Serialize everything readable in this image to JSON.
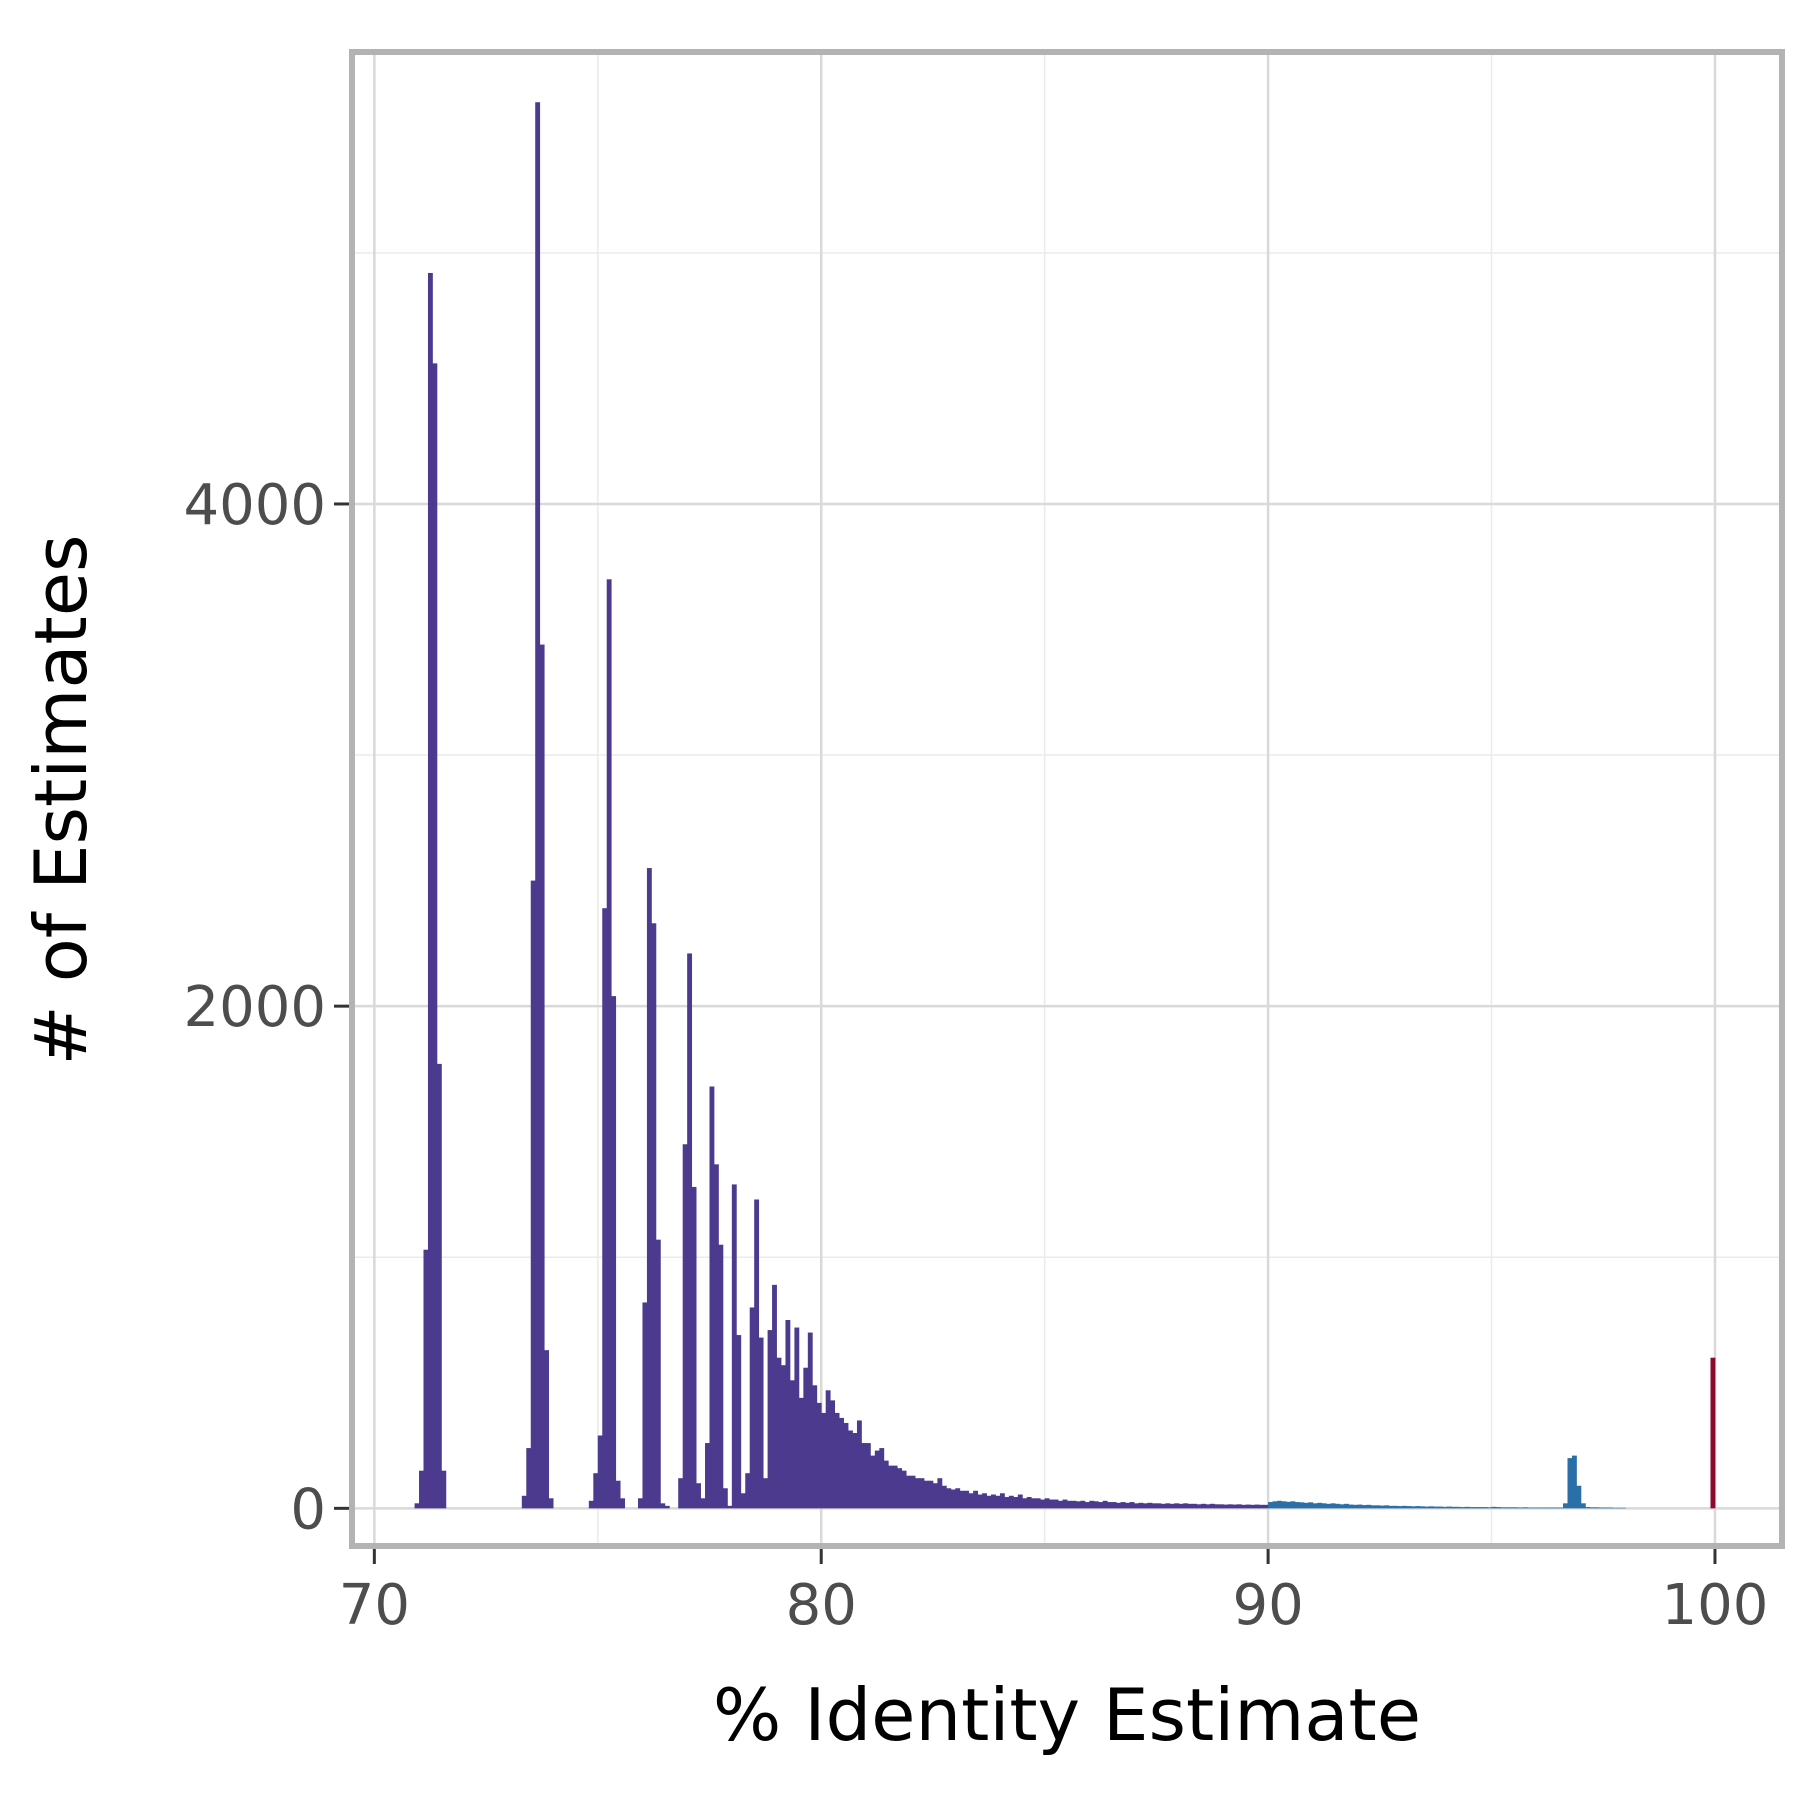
{
  "chart_data": {
    "type": "bar",
    "title": "",
    "xlabel": "% Identity Estimate",
    "ylabel": "# of Estimates",
    "xlim": [
      69.5,
      101.5
    ],
    "ylim": [
      -150,
      5800
    ],
    "x_ticks": [
      70,
      80,
      90,
      100
    ],
    "x_tick_labels": [
      "70",
      "80",
      "90",
      "100"
    ],
    "y_ticks": [
      0,
      2000,
      4000
    ],
    "y_tick_labels": [
      "0",
      "2000",
      "4000"
    ],
    "x_minor_ticks": [
      75,
      85,
      95
    ],
    "y_minor_ticks": [
      1000,
      3000,
      5000
    ],
    "grid": true,
    "bin_width": 0.1,
    "colors": {
      "purple": "#4b3a8e",
      "blue": "#2a6fa8",
      "red": "#8b0a2e",
      "grid": "#d9d9d9",
      "frame": "#b3b3b3"
    },
    "series": [
      {
        "color": "#4b3a8e",
        "bins": [
          [
            70.9,
            20
          ],
          [
            71.0,
            150
          ],
          [
            71.1,
            1030
          ],
          [
            71.2,
            4920
          ],
          [
            71.3,
            4560
          ],
          [
            71.4,
            1770
          ],
          [
            71.5,
            150
          ],
          [
            73.3,
            50
          ],
          [
            73.4,
            240
          ],
          [
            73.5,
            2500
          ],
          [
            73.6,
            5600
          ],
          [
            73.7,
            3440
          ],
          [
            73.8,
            630
          ],
          [
            73.9,
            40
          ],
          [
            74.8,
            30
          ],
          [
            74.9,
            140
          ],
          [
            75.0,
            290
          ],
          [
            75.1,
            2390
          ],
          [
            75.2,
            3700
          ],
          [
            75.3,
            2040
          ],
          [
            75.4,
            110
          ],
          [
            75.5,
            40
          ],
          [
            75.9,
            40
          ],
          [
            76.0,
            820
          ],
          [
            76.1,
            2550
          ],
          [
            76.2,
            2330
          ],
          [
            76.3,
            1070
          ],
          [
            76.4,
            20
          ],
          [
            76.5,
            10
          ],
          [
            76.8,
            120
          ],
          [
            76.9,
            1450
          ],
          [
            77.0,
            2210
          ],
          [
            77.1,
            1280
          ],
          [
            77.2,
            100
          ],
          [
            77.3,
            40
          ],
          [
            77.4,
            260
          ],
          [
            77.5,
            1680
          ],
          [
            77.6,
            1370
          ],
          [
            77.7,
            1050
          ],
          [
            77.8,
            80
          ],
          [
            77.9,
            10
          ],
          [
            78.0,
            1290
          ],
          [
            78.1,
            690
          ],
          [
            78.2,
            60
          ],
          [
            78.3,
            140
          ],
          [
            78.4,
            800
          ],
          [
            78.5,
            1230
          ],
          [
            78.6,
            680
          ],
          [
            78.7,
            120
          ],
          [
            78.8,
            710
          ],
          [
            78.9,
            890
          ],
          [
            79.0,
            600
          ],
          [
            79.1,
            570
          ],
          [
            79.2,
            750
          ],
          [
            79.3,
            510
          ],
          [
            79.4,
            720
          ],
          [
            79.5,
            440
          ],
          [
            79.6,
            560
          ],
          [
            79.7,
            700
          ],
          [
            79.8,
            490
          ],
          [
            79.9,
            420
          ],
          [
            80.0,
            380
          ],
          [
            80.1,
            470
          ],
          [
            80.2,
            430
          ],
          [
            80.3,
            380
          ],
          [
            80.4,
            360
          ],
          [
            80.5,
            340
          ],
          [
            80.6,
            310
          ],
          [
            80.7,
            300
          ],
          [
            80.8,
            350
          ],
          [
            80.9,
            260
          ],
          [
            81.0,
            260
          ],
          [
            81.1,
            210
          ],
          [
            81.2,
            230
          ],
          [
            81.3,
            240
          ],
          [
            81.4,
            190
          ],
          [
            81.5,
            170
          ],
          [
            81.6,
            170
          ],
          [
            81.7,
            160
          ],
          [
            81.8,
            150
          ],
          [
            81.9,
            130
          ],
          [
            82.0,
            130
          ],
          [
            82.1,
            120
          ],
          [
            82.2,
            120
          ],
          [
            82.3,
            110
          ],
          [
            82.4,
            110
          ],
          [
            82.5,
            100
          ],
          [
            82.6,
            120
          ],
          [
            82.7,
            90
          ],
          [
            82.8,
            80
          ],
          [
            82.9,
            75
          ],
          [
            83.0,
            80
          ],
          [
            83.1,
            70
          ],
          [
            83.2,
            70
          ],
          [
            83.3,
            60
          ],
          [
            83.4,
            70
          ],
          [
            83.5,
            55
          ],
          [
            83.6,
            60
          ],
          [
            83.7,
            50
          ],
          [
            83.8,
            55
          ],
          [
            83.9,
            50
          ],
          [
            84.0,
            60
          ],
          [
            84.1,
            45
          ],
          [
            84.2,
            50
          ],
          [
            84.3,
            45
          ],
          [
            84.4,
            55
          ],
          [
            84.5,
            40
          ],
          [
            84.6,
            45
          ],
          [
            84.7,
            40
          ],
          [
            84.8,
            40
          ],
          [
            84.9,
            35
          ],
          [
            85.0,
            40
          ],
          [
            85.1,
            35
          ],
          [
            85.2,
            35
          ],
          [
            85.3,
            30
          ],
          [
            85.4,
            35
          ],
          [
            85.5,
            30
          ],
          [
            85.6,
            30
          ],
          [
            85.7,
            28
          ],
          [
            85.8,
            30
          ],
          [
            85.9,
            25
          ],
          [
            86.0,
            30
          ],
          [
            86.1,
            28
          ],
          [
            86.2,
            25
          ],
          [
            86.3,
            30
          ],
          [
            86.4,
            25
          ],
          [
            86.5,
            25
          ],
          [
            86.6,
            22
          ],
          [
            86.7,
            25
          ],
          [
            86.8,
            22
          ],
          [
            86.9,
            25
          ],
          [
            87.0,
            20
          ],
          [
            87.1,
            22
          ],
          [
            87.2,
            20
          ],
          [
            87.3,
            22
          ],
          [
            87.4,
            20
          ],
          [
            87.5,
            20
          ],
          [
            87.6,
            18
          ],
          [
            87.7,
            20
          ],
          [
            87.8,
            18
          ],
          [
            87.9,
            20
          ],
          [
            88.0,
            18
          ],
          [
            88.1,
            20
          ],
          [
            88.2,
            18
          ],
          [
            88.3,
            18
          ],
          [
            88.4,
            16
          ],
          [
            88.5,
            18
          ],
          [
            88.6,
            16
          ],
          [
            88.7,
            18
          ],
          [
            88.8,
            16
          ],
          [
            88.9,
            16
          ],
          [
            89.0,
            15
          ],
          [
            89.1,
            16
          ],
          [
            89.2,
            15
          ],
          [
            89.3,
            16
          ],
          [
            89.4,
            14
          ],
          [
            89.5,
            15
          ],
          [
            89.6,
            14
          ],
          [
            89.7,
            15
          ],
          [
            89.8,
            14
          ],
          [
            89.9,
            14
          ]
        ]
      },
      {
        "color": "#2a6fa8",
        "bins": [
          [
            90.0,
            25
          ],
          [
            90.1,
            28
          ],
          [
            90.2,
            30
          ],
          [
            90.3,
            28
          ],
          [
            90.4,
            26
          ],
          [
            90.5,
            28
          ],
          [
            90.6,
            25
          ],
          [
            90.7,
            24
          ],
          [
            90.8,
            22
          ],
          [
            90.9,
            24
          ],
          [
            91.0,
            20
          ],
          [
            91.1,
            22
          ],
          [
            91.2,
            20
          ],
          [
            91.3,
            18
          ],
          [
            91.4,
            20
          ],
          [
            91.5,
            18
          ],
          [
            91.6,
            16
          ],
          [
            91.7,
            18
          ],
          [
            91.8,
            15
          ],
          [
            91.9,
            14
          ],
          [
            92.0,
            15
          ],
          [
            92.1,
            13
          ],
          [
            92.2,
            14
          ],
          [
            92.3,
            12
          ],
          [
            92.4,
            12
          ],
          [
            92.5,
            11
          ],
          [
            92.6,
            12
          ],
          [
            92.7,
            10
          ],
          [
            92.8,
            10
          ],
          [
            92.9,
            9
          ],
          [
            93.0,
            10
          ],
          [
            93.1,
            9
          ],
          [
            93.2,
            8
          ],
          [
            93.3,
            9
          ],
          [
            93.4,
            8
          ],
          [
            93.5,
            7
          ],
          [
            93.6,
            8
          ],
          [
            93.7,
            7
          ],
          [
            93.8,
            7
          ],
          [
            93.9,
            6
          ],
          [
            94.0,
            7
          ],
          [
            94.1,
            6
          ],
          [
            94.2,
            6
          ],
          [
            94.3,
            5
          ],
          [
            94.4,
            6
          ],
          [
            94.5,
            5
          ],
          [
            94.6,
            5
          ],
          [
            94.7,
            5
          ],
          [
            94.8,
            5
          ],
          [
            94.9,
            4
          ],
          [
            95.0,
            6
          ],
          [
            95.1,
            5
          ],
          [
            95.2,
            4
          ],
          [
            95.3,
            4
          ],
          [
            95.4,
            4
          ],
          [
            95.5,
            4
          ],
          [
            95.6,
            3
          ],
          [
            95.7,
            4
          ],
          [
            95.8,
            3
          ],
          [
            95.9,
            3
          ],
          [
            96.0,
            3
          ],
          [
            96.1,
            3
          ],
          [
            96.2,
            3
          ],
          [
            96.3,
            3
          ],
          [
            96.4,
            3
          ],
          [
            96.5,
            3
          ],
          [
            96.6,
            20
          ],
          [
            96.7,
            200
          ],
          [
            96.8,
            210
          ],
          [
            96.9,
            90
          ],
          [
            97.0,
            20
          ],
          [
            97.1,
            5
          ],
          [
            97.2,
            4
          ],
          [
            97.3,
            4
          ],
          [
            97.4,
            3
          ],
          [
            97.5,
            3
          ],
          [
            97.6,
            3
          ],
          [
            97.7,
            2
          ],
          [
            97.8,
            2
          ],
          [
            97.9,
            2
          ]
        ]
      },
      {
        "color": "#8b0a2e",
        "bins": [
          [
            99.9,
            600
          ]
        ]
      }
    ]
  }
}
